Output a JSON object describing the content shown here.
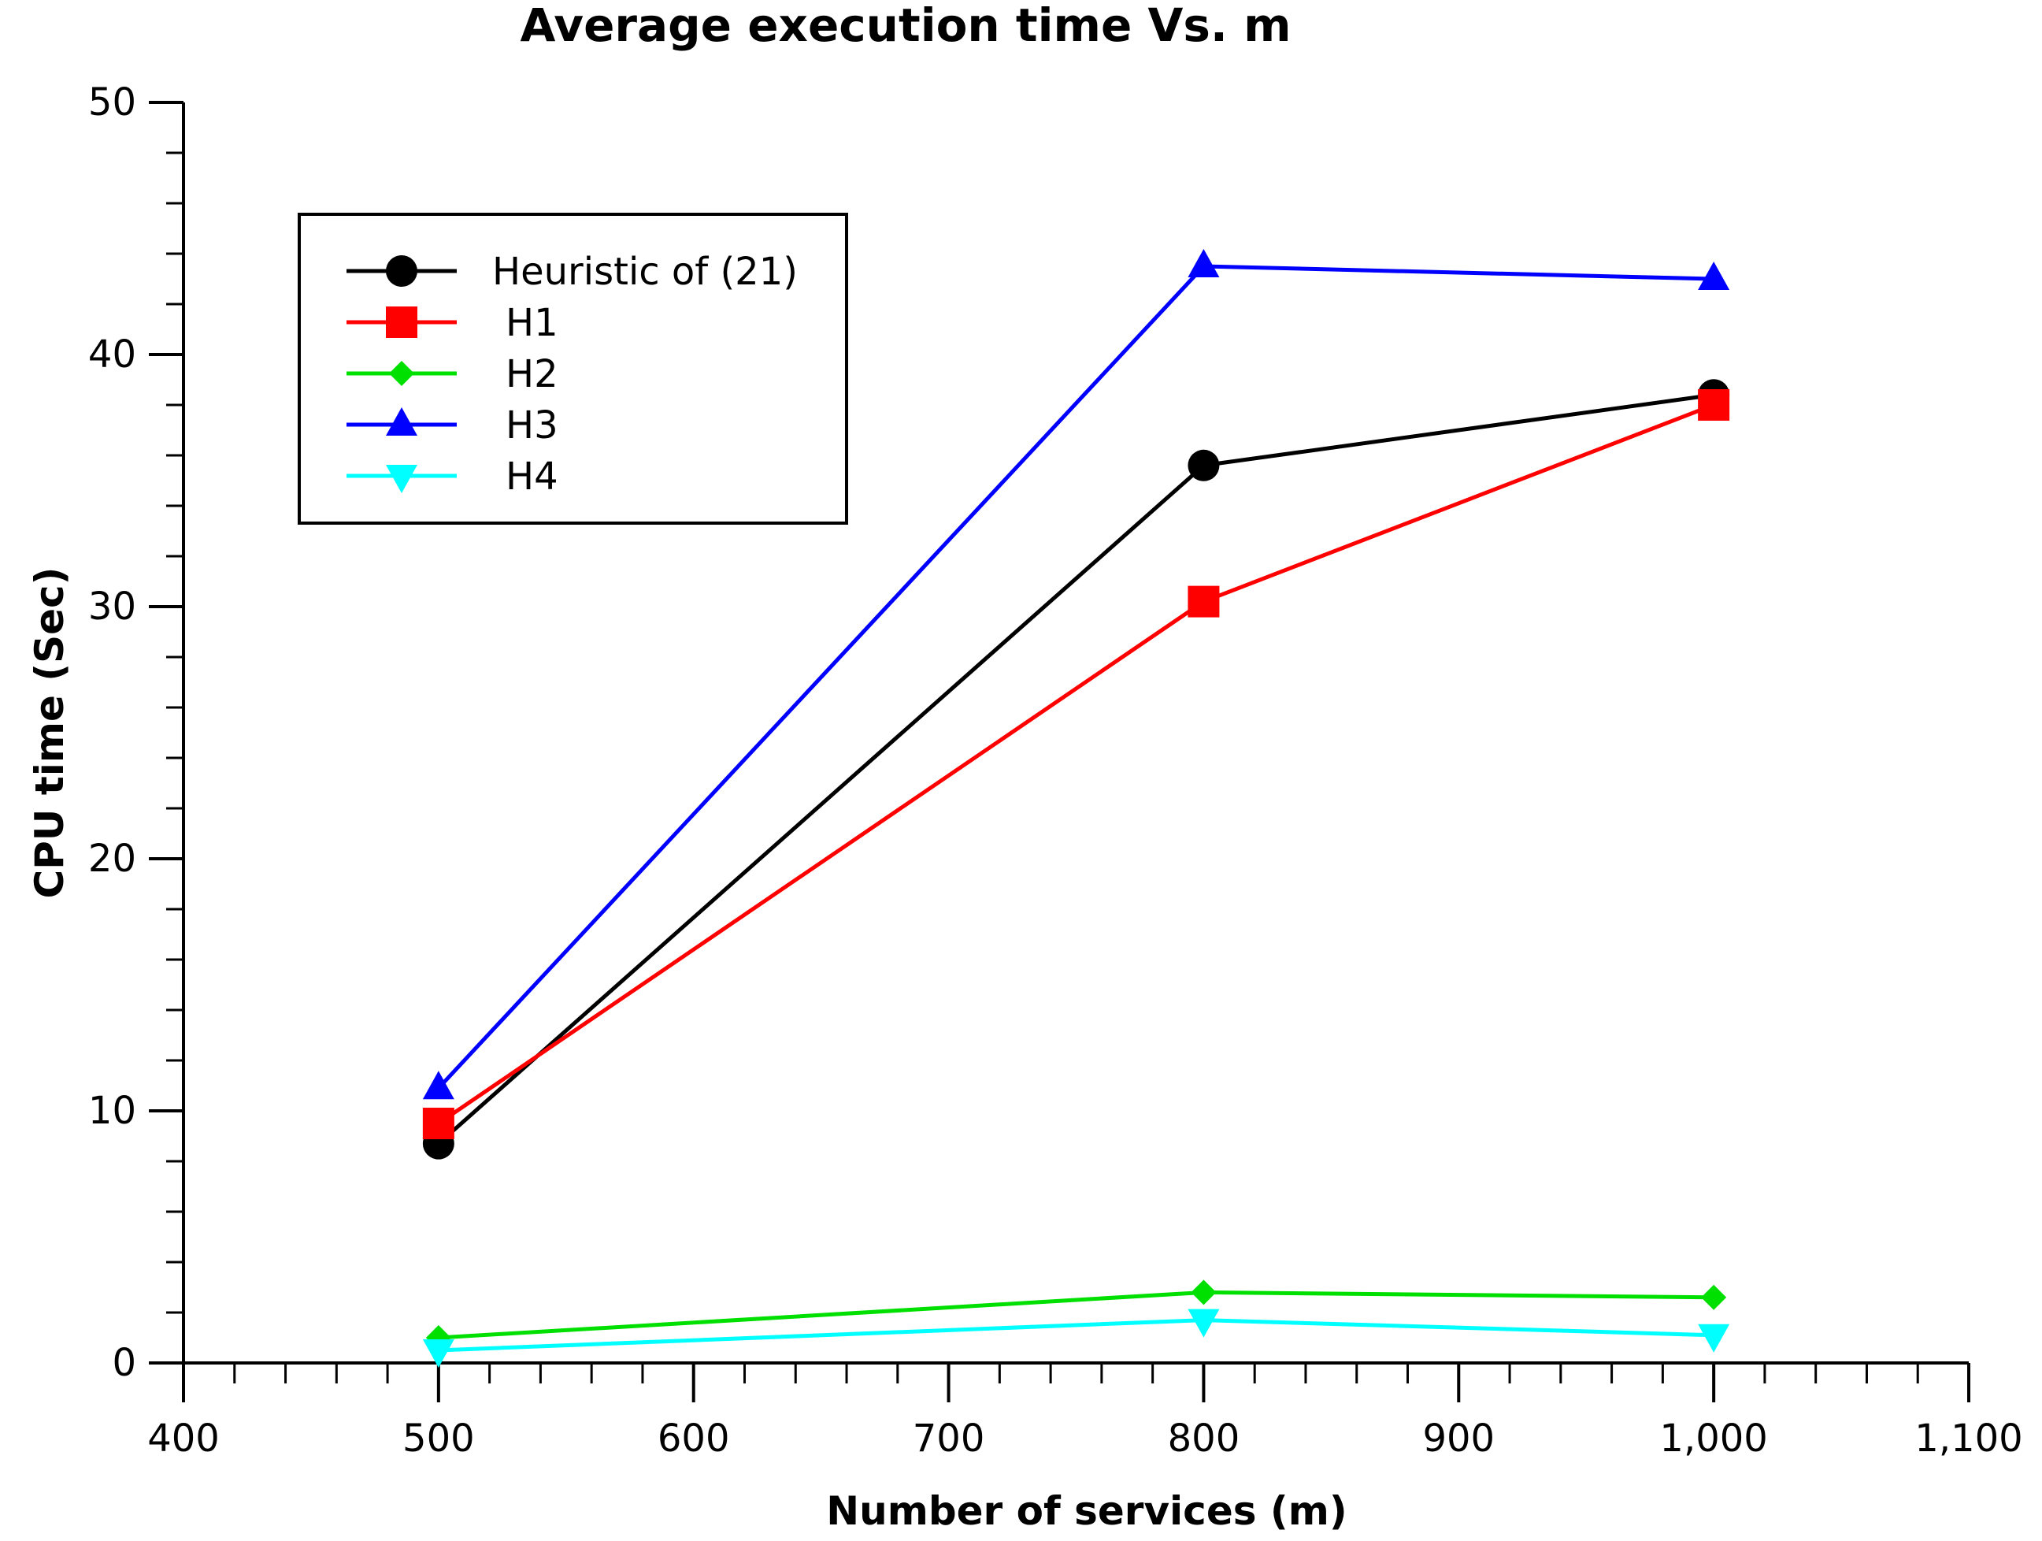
{
  "chart_data": {
    "type": "line",
    "title": "Average execution time Vs. m",
    "xlabel": "Number of services (m)",
    "ylabel": "CPU time (Sec)",
    "xlim": [
      400,
      1100
    ],
    "ylim": [
      0,
      50
    ],
    "x_ticks": [
      400,
      500,
      600,
      700,
      800,
      900,
      1000,
      1100
    ],
    "x_tick_labels": [
      "400",
      "500",
      "600",
      "700",
      "800",
      "900",
      "1,000",
      "1,100"
    ],
    "y_ticks": [
      0,
      10,
      20,
      30,
      40,
      50
    ],
    "y_tick_labels": [
      "0",
      "10",
      "20",
      "30",
      "40",
      "50"
    ],
    "x": [
      500,
      800,
      1000
    ],
    "series": [
      {
        "name": "Heuristic of (21)",
        "values": [
          8.7,
          35.6,
          38.4
        ],
        "color": "#000000",
        "marker": "circle"
      },
      {
        "name": "H1",
        "values": [
          9.5,
          30.2,
          38.0
        ],
        "color": "#ff0000",
        "marker": "square"
      },
      {
        "name": "H2",
        "values": [
          1.0,
          2.8,
          2.6
        ],
        "color": "#00e000",
        "marker": "diamond"
      },
      {
        "name": "H3",
        "values": [
          10.9,
          43.5,
          43.0
        ],
        "color": "#0000ff",
        "marker": "triangle-up"
      },
      {
        "name": "H4",
        "values": [
          0.5,
          1.7,
          1.1
        ],
        "color": "#00ffff",
        "marker": "triangle-down"
      }
    ],
    "legend_position": "top-left",
    "grid": false
  }
}
